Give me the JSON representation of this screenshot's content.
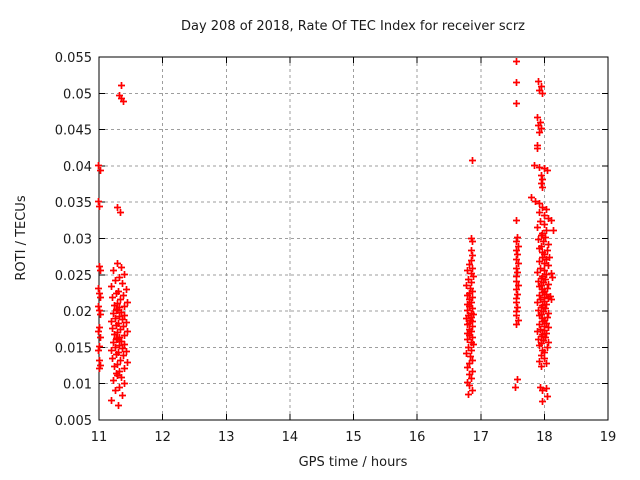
{
  "window": {
    "background": "#ffffff"
  },
  "colors": {
    "background": "#ffffff",
    "grid": "#9e9e9e",
    "axis": "#000000",
    "text": "#1a1a1a",
    "marker": "#ff0000"
  },
  "chart_data": {
    "type": "scatter",
    "title": "Day 208 of 2018, Rate Of TEC Index for receiver scrz",
    "xlabel": "GPS time / hours",
    "ylabel": "ROTI / TECUs",
    "xlim": [
      11,
      19
    ],
    "ylim": [
      0.005,
      0.055
    ],
    "x_ticks": [
      11,
      12,
      13,
      14,
      15,
      16,
      17,
      18,
      19
    ],
    "x_tick_labels": [
      "11",
      "12",
      "13",
      "14",
      "15",
      "16",
      "17",
      "18",
      "19"
    ],
    "y_ticks": [
      0.005,
      0.01,
      0.015,
      0.02,
      0.025,
      0.03,
      0.035,
      0.04,
      0.045,
      0.05,
      0.055
    ],
    "y_tick_labels": [
      "0.005",
      "0.01",
      "0.015",
      "0.02",
      "0.025",
      "0.03",
      "0.035",
      "0.04",
      "0.045",
      "0.05",
      "0.055"
    ],
    "grid": true,
    "legend": "none",
    "marker": {
      "shape": "plus",
      "color": "#ff0000",
      "size": 7
    },
    "series": [
      {
        "name": "ROTI",
        "points": [
          [
            10.99,
            0.0401
          ],
          [
            11.01,
            0.0394
          ],
          [
            10.99,
            0.0352
          ],
          [
            11.0,
            0.0345
          ],
          [
            11.0,
            0.0262
          ],
          [
            11.01,
            0.0257
          ],
          [
            10.99,
            0.0232
          ],
          [
            11.0,
            0.0225
          ],
          [
            11.01,
            0.0219
          ],
          [
            10.99,
            0.0207
          ],
          [
            11.0,
            0.0201
          ],
          [
            11.01,
            0.0196
          ],
          [
            11.0,
            0.0178
          ],
          [
            10.99,
            0.0172
          ],
          [
            11.01,
            0.0165
          ],
          [
            11.0,
            0.0152
          ],
          [
            10.99,
            0.0147
          ],
          [
            11.0,
            0.0133
          ],
          [
            11.01,
            0.0126
          ],
          [
            11.0,
            0.0121
          ],
          [
            11.35,
            0.0511
          ],
          [
            11.31,
            0.0497
          ],
          [
            11.35,
            0.0493
          ],
          [
            11.38,
            0.049
          ],
          [
            11.28,
            0.0343
          ],
          [
            11.33,
            0.0336
          ],
          [
            11.28,
            0.0266
          ],
          [
            11.34,
            0.0261
          ],
          [
            11.22,
            0.0256
          ],
          [
            11.39,
            0.0251
          ],
          [
            11.31,
            0.0247
          ],
          [
            11.25,
            0.0243
          ],
          [
            11.36,
            0.0239
          ],
          [
            11.19,
            0.0235
          ],
          [
            11.42,
            0.0231
          ],
          [
            11.3,
            0.0228
          ],
          [
            11.26,
            0.0225
          ],
          [
            11.37,
            0.0222
          ],
          [
            11.21,
            0.0219
          ],
          [
            11.33,
            0.0216
          ],
          [
            11.44,
            0.0213
          ],
          [
            11.29,
            0.0211
          ],
          [
            11.24,
            0.0209
          ],
          [
            11.4,
            0.0207
          ],
          [
            11.32,
            0.0205
          ],
          [
            11.27,
            0.0203
          ],
          [
            11.28,
            0.0201
          ],
          [
            11.34,
            0.0199
          ],
          [
            11.22,
            0.0197
          ],
          [
            11.39,
            0.0195
          ],
          [
            11.31,
            0.0193
          ],
          [
            11.25,
            0.0191
          ],
          [
            11.36,
            0.0189
          ],
          [
            11.19,
            0.0187
          ],
          [
            11.42,
            0.0185
          ],
          [
            11.3,
            0.0183
          ],
          [
            11.26,
            0.0181
          ],
          [
            11.37,
            0.0179
          ],
          [
            11.21,
            0.0177
          ],
          [
            11.33,
            0.0175
          ],
          [
            11.44,
            0.0173
          ],
          [
            11.29,
            0.0171
          ],
          [
            11.24,
            0.0169
          ],
          [
            11.4,
            0.0167
          ],
          [
            11.32,
            0.0165
          ],
          [
            11.27,
            0.0163
          ],
          [
            11.28,
            0.0161
          ],
          [
            11.34,
            0.0159
          ],
          [
            11.22,
            0.0157
          ],
          [
            11.39,
            0.0155
          ],
          [
            11.31,
            0.0153
          ],
          [
            11.25,
            0.0151
          ],
          [
            11.36,
            0.0149
          ],
          [
            11.19,
            0.0147
          ],
          [
            11.42,
            0.0145
          ],
          [
            11.3,
            0.0143
          ],
          [
            11.26,
            0.0141
          ],
          [
            11.37,
            0.0139
          ],
          [
            11.21,
            0.0136
          ],
          [
            11.33,
            0.0133
          ],
          [
            11.44,
            0.013
          ],
          [
            11.29,
            0.0127
          ],
          [
            11.24,
            0.0124
          ],
          [
            11.4,
            0.0121
          ],
          [
            11.32,
            0.0118
          ],
          [
            11.27,
            0.0115
          ],
          [
            11.28,
            0.0112
          ],
          [
            11.34,
            0.0109
          ],
          [
            11.22,
            0.0105
          ],
          [
            11.39,
            0.0101
          ],
          [
            11.31,
            0.0096
          ],
          [
            11.25,
            0.0091
          ],
          [
            11.36,
            0.0085
          ],
          [
            11.19,
            0.0078
          ],
          [
            11.3,
            0.0071
          ],
          [
            16.87,
            0.0408
          ],
          [
            16.85,
            0.0301
          ],
          [
            16.87,
            0.0296
          ],
          [
            16.85,
            0.0284
          ],
          [
            16.86,
            0.0277
          ],
          [
            16.84,
            0.0271
          ],
          [
            16.82,
            0.0265
          ],
          [
            16.86,
            0.026
          ],
          [
            16.79,
            0.0256
          ],
          [
            16.84,
            0.0252
          ],
          [
            16.88,
            0.0248
          ],
          [
            16.8,
            0.0244
          ],
          [
            16.85,
            0.024
          ],
          [
            16.77,
            0.0236
          ],
          [
            16.83,
            0.0232
          ],
          [
            16.87,
            0.0228
          ],
          [
            16.81,
            0.0225
          ],
          [
            16.78,
            0.0222
          ],
          [
            16.86,
            0.0219
          ],
          [
            16.82,
            0.0216
          ],
          [
            16.84,
            0.0213
          ],
          [
            16.79,
            0.021
          ],
          [
            16.82,
            0.0207
          ],
          [
            16.86,
            0.0204
          ],
          [
            16.79,
            0.0201
          ],
          [
            16.84,
            0.0198
          ],
          [
            16.88,
            0.0196
          ],
          [
            16.8,
            0.0194
          ],
          [
            16.85,
            0.0192
          ],
          [
            16.77,
            0.019
          ],
          [
            16.83,
            0.0188
          ],
          [
            16.87,
            0.0186
          ],
          [
            16.81,
            0.0184
          ],
          [
            16.78,
            0.0182
          ],
          [
            16.86,
            0.0179
          ],
          [
            16.82,
            0.0176
          ],
          [
            16.84,
            0.0173
          ],
          [
            16.79,
            0.017
          ],
          [
            16.82,
            0.0167
          ],
          [
            16.86,
            0.0164
          ],
          [
            16.79,
            0.0161
          ],
          [
            16.84,
            0.0158
          ],
          [
            16.88,
            0.0154
          ],
          [
            16.8,
            0.015
          ],
          [
            16.85,
            0.0146
          ],
          [
            16.77,
            0.0142
          ],
          [
            16.83,
            0.0138
          ],
          [
            16.87,
            0.0133
          ],
          [
            16.81,
            0.0128
          ],
          [
            16.78,
            0.0123
          ],
          [
            16.86,
            0.0118
          ],
          [
            16.82,
            0.0113
          ],
          [
            16.84,
            0.0108
          ],
          [
            16.79,
            0.0103
          ],
          [
            16.82,
            0.0098
          ],
          [
            16.86,
            0.0092
          ],
          [
            16.8,
            0.0086
          ],
          [
            17.56,
            0.0544
          ],
          [
            17.56,
            0.0515
          ],
          [
            17.56,
            0.0486
          ],
          [
            17.55,
            0.0325
          ],
          [
            17.57,
            0.0302
          ],
          [
            17.56,
            0.0296
          ],
          [
            17.58,
            0.029
          ],
          [
            17.55,
            0.0284
          ],
          [
            17.57,
            0.0278
          ],
          [
            17.56,
            0.0272
          ],
          [
            17.58,
            0.0266
          ],
          [
            17.55,
            0.026
          ],
          [
            17.57,
            0.0254
          ],
          [
            17.56,
            0.0248
          ],
          [
            17.55,
            0.0242
          ],
          [
            17.58,
            0.0236
          ],
          [
            17.56,
            0.023
          ],
          [
            17.57,
            0.0224
          ],
          [
            17.55,
            0.0218
          ],
          [
            17.56,
            0.0212
          ],
          [
            17.57,
            0.0206
          ],
          [
            17.55,
            0.02
          ],
          [
            17.56,
            0.0194
          ],
          [
            17.58,
            0.0188
          ],
          [
            17.56,
            0.0182
          ],
          [
            17.57,
            0.0106
          ],
          [
            17.54,
            0.0095
          ],
          [
            17.9,
            0.0517
          ],
          [
            17.94,
            0.051
          ],
          [
            17.92,
            0.0505
          ],
          [
            17.96,
            0.0501
          ],
          [
            17.89,
            0.0467
          ],
          [
            17.93,
            0.0461
          ],
          [
            17.9,
            0.0456
          ],
          [
            17.95,
            0.0452
          ],
          [
            17.91,
            0.0447
          ],
          [
            17.88,
            0.0429
          ],
          [
            17.89,
            0.0424
          ],
          [
            17.83,
            0.0401
          ],
          [
            17.92,
            0.0399
          ],
          [
            18.0,
            0.0397
          ],
          [
            18.04,
            0.0395
          ],
          [
            17.95,
            0.0387
          ],
          [
            17.96,
            0.0382
          ],
          [
            17.94,
            0.0377
          ],
          [
            17.97,
            0.0371
          ],
          [
            17.79,
            0.0357
          ],
          [
            17.85,
            0.0352
          ],
          [
            17.92,
            0.0349
          ],
          [
            17.96,
            0.0344
          ],
          [
            18.02,
            0.034
          ],
          [
            17.91,
            0.0336
          ],
          [
            17.99,
            0.0332
          ],
          [
            18.05,
            0.0328
          ],
          [
            17.93,
            0.0324
          ],
          [
            18.0,
            0.032
          ],
          [
            17.89,
            0.0316
          ],
          [
            18.03,
            0.0312
          ],
          [
            17.97,
            0.0308
          ],
          [
            17.94,
            0.0305
          ],
          [
            18.01,
            0.0302
          ],
          [
            17.9,
            0.0299
          ],
          [
            17.98,
            0.0296
          ],
          [
            18.06,
            0.0293
          ],
          [
            17.95,
            0.029
          ],
          [
            17.92,
            0.0287
          ],
          [
            18.04,
            0.0284
          ],
          [
            17.96,
            0.0281
          ],
          [
            18.0,
            0.0278
          ],
          [
            17.96,
            0.0275
          ],
          [
            18.02,
            0.0272
          ],
          [
            17.91,
            0.0269
          ],
          [
            17.99,
            0.0266
          ],
          [
            18.05,
            0.0263
          ],
          [
            17.93,
            0.026
          ],
          [
            18.0,
            0.0257
          ],
          [
            17.89,
            0.0254
          ],
          [
            18.03,
            0.0251
          ],
          [
            17.97,
            0.0248
          ],
          [
            17.94,
            0.0246
          ],
          [
            18.01,
            0.0244
          ],
          [
            17.9,
            0.0242
          ],
          [
            17.98,
            0.024
          ],
          [
            18.06,
            0.0238
          ],
          [
            17.95,
            0.0236
          ],
          [
            17.92,
            0.0234
          ],
          [
            18.04,
            0.0232
          ],
          [
            17.96,
            0.023
          ],
          [
            18.0,
            0.0228
          ],
          [
            17.96,
            0.0226
          ],
          [
            18.02,
            0.0224
          ],
          [
            17.91,
            0.0222
          ],
          [
            17.99,
            0.022
          ],
          [
            18.05,
            0.0218
          ],
          [
            17.93,
            0.0216
          ],
          [
            18.0,
            0.0214
          ],
          [
            17.89,
            0.0212
          ],
          [
            18.03,
            0.021
          ],
          [
            17.97,
            0.0208
          ],
          [
            17.94,
            0.0206
          ],
          [
            18.01,
            0.0204
          ],
          [
            17.9,
            0.0202
          ],
          [
            17.98,
            0.02
          ],
          [
            18.06,
            0.0198
          ],
          [
            17.95,
            0.0196
          ],
          [
            17.92,
            0.0194
          ],
          [
            18.04,
            0.0192
          ],
          [
            17.96,
            0.019
          ],
          [
            18.0,
            0.0188
          ],
          [
            17.96,
            0.0186
          ],
          [
            18.02,
            0.0184
          ],
          [
            17.91,
            0.0182
          ],
          [
            17.99,
            0.018
          ],
          [
            18.05,
            0.0178
          ],
          [
            17.93,
            0.0176
          ],
          [
            18.0,
            0.0174
          ],
          [
            17.89,
            0.0172
          ],
          [
            18.03,
            0.017
          ],
          [
            17.97,
            0.0168
          ],
          [
            17.94,
            0.0166
          ],
          [
            18.01,
            0.0164
          ],
          [
            17.9,
            0.0162
          ],
          [
            17.98,
            0.016
          ],
          [
            18.06,
            0.0158
          ],
          [
            17.95,
            0.0156
          ],
          [
            17.92,
            0.0153
          ],
          [
            18.04,
            0.015
          ],
          [
            17.96,
            0.0147
          ],
          [
            18.0,
            0.0144
          ],
          [
            18.1,
            0.0326
          ],
          [
            18.13,
            0.0312
          ],
          [
            18.08,
            0.0275
          ],
          [
            18.11,
            0.0252
          ],
          [
            18.12,
            0.0247
          ],
          [
            18.09,
            0.0221
          ],
          [
            18.1,
            0.0216
          ],
          [
            17.94,
            0.014
          ],
          [
            18.0,
            0.0136
          ],
          [
            17.92,
            0.0131
          ],
          [
            18.02,
            0.0128
          ],
          [
            17.95,
            0.0125
          ],
          [
            17.93,
            0.0096
          ],
          [
            18.02,
            0.0094
          ],
          [
            17.96,
            0.0091
          ],
          [
            18.04,
            0.0083
          ],
          [
            17.97,
            0.0076
          ]
        ]
      }
    ]
  }
}
